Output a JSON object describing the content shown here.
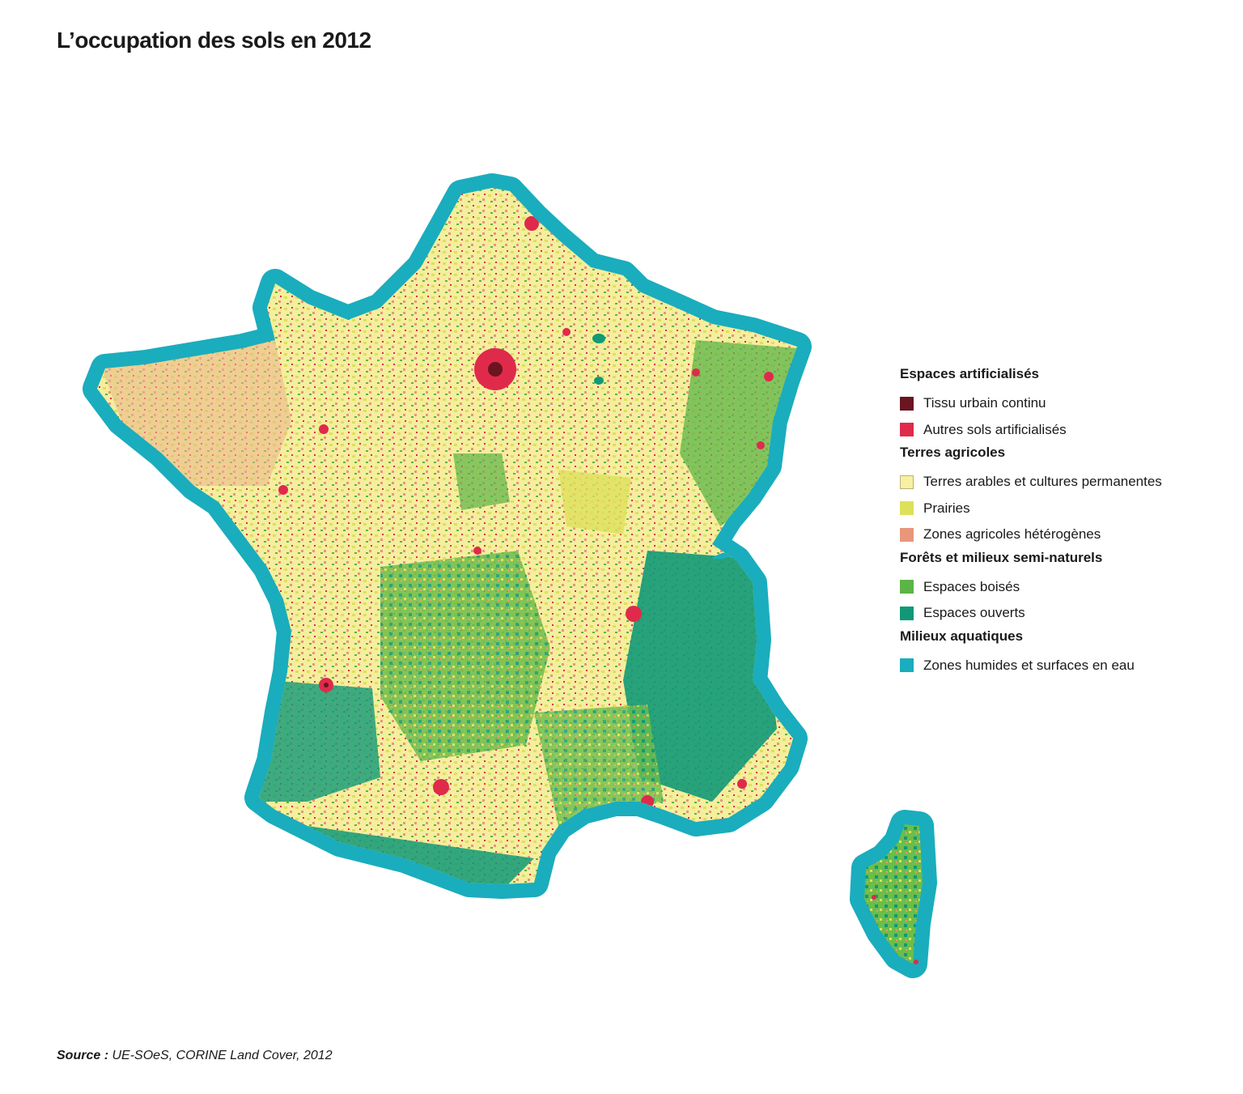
{
  "title": "L’occupation des sols en 2012",
  "legend": {
    "groups": [
      {
        "title": "Espaces artificialisés",
        "items": [
          {
            "label": "Tissu urbain continu",
            "color": "#6b1520"
          },
          {
            "label": "Autres sols artificialisés",
            "color": "#df2a4c"
          }
        ]
      },
      {
        "title": "Terres agricoles",
        "items": [
          {
            "label": "Terres arables et cultures permanentes",
            "color": "#f7f0a0"
          },
          {
            "label": "Prairies",
            "color": "#dde05a"
          },
          {
            "label": "Zones agricoles hétérogènes",
            "color": "#e8977a"
          }
        ]
      },
      {
        "title": "Forêts et milieux semi-naturels",
        "items": [
          {
            "label": "Espaces boisés",
            "color": "#5cb447"
          },
          {
            "label": "Espaces ouverts",
            "color": "#119977"
          }
        ]
      },
      {
        "title": "Milieux aquatiques",
        "items": [
          {
            "label": "Zones humides et surfaces en eau",
            "color": "#1aadbd"
          }
        ]
      }
    ]
  },
  "source": {
    "label": "Source :",
    "text": "UE-SOeS, CORINE Land Cover, 2012"
  }
}
